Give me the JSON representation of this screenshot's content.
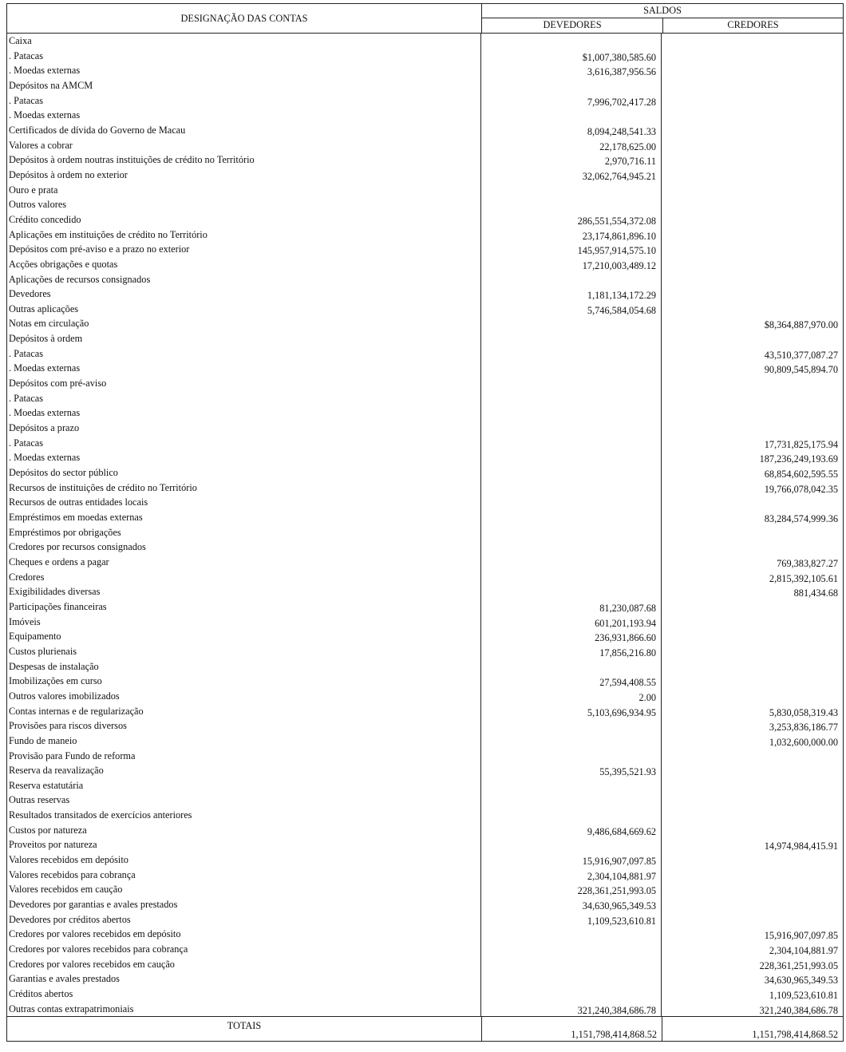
{
  "header": {
    "designacao": "DESIGNAÇÃO DAS CONTAS",
    "saldos": "SALDOS",
    "devedores": "DEVEDORES",
    "credores": "CREDORES"
  },
  "rows": [
    [
      "Caixa",
      "",
      ""
    ],
    [
      ". Patacas",
      "$1,007,380,585.60",
      ""
    ],
    [
      ". Moedas externas",
      "3,616,387,956.56",
      ""
    ],
    [
      "Depósitos na AMCM",
      "",
      ""
    ],
    [
      ". Patacas",
      "7,996,702,417.28",
      ""
    ],
    [
      ". Moedas externas",
      "",
      ""
    ],
    [
      "Certificados de dívida do Governo de Macau",
      "8,094,248,541.33",
      ""
    ],
    [
      "Valores a cobrar",
      "22,178,625.00",
      ""
    ],
    [
      "Depósitos à ordem noutras instituições de crédito no Território",
      "2,970,716.11",
      ""
    ],
    [
      "Depósitos à ordem no exterior",
      "32,062,764,945.21",
      ""
    ],
    [
      "Ouro e prata",
      "",
      ""
    ],
    [
      "Outros valores",
      "",
      ""
    ],
    [
      "Crédito concedido",
      "286,551,554,372.08",
      ""
    ],
    [
      "Aplicações em instituições de crédito no Território",
      "23,174,861,896.10",
      ""
    ],
    [
      "Depósitos com pré-aviso e a prazo no exterior",
      "145,957,914,575.10",
      ""
    ],
    [
      "Acções obrigações e quotas",
      "17,210,003,489.12",
      ""
    ],
    [
      "Aplicações de recursos consignados",
      "",
      ""
    ],
    [
      "Devedores",
      "1,181,134,172.29",
      ""
    ],
    [
      "Outras aplicações",
      "5,746,584,054.68",
      ""
    ],
    [
      "Notas em circulação",
      "",
      "$8,364,887,970.00"
    ],
    [
      "Depósitos à ordem",
      "",
      ""
    ],
    [
      ". Patacas",
      "",
      "43,510,377,087.27"
    ],
    [
      ". Moedas externas",
      "",
      "90,809,545,894.70"
    ],
    [
      "Depósitos com pré-aviso",
      "",
      ""
    ],
    [
      ". Patacas",
      "",
      ""
    ],
    [
      ". Moedas externas",
      "",
      ""
    ],
    [
      "Depósitos a prazo",
      "",
      ""
    ],
    [
      ". Patacas",
      "",
      "17,731,825,175.94"
    ],
    [
      ". Moedas externas",
      "",
      "187,236,249,193.69"
    ],
    [
      "Depósitos do sector público",
      "",
      "68,854,602,595.55"
    ],
    [
      "Recursos de instituições de crédito no Território",
      "",
      "19,766,078,042.35"
    ],
    [
      "Recursos de outras entidades locais",
      "",
      ""
    ],
    [
      "Empréstimos em moedas externas",
      "",
      "83,284,574,999.36"
    ],
    [
      "Empréstimos por obrigações",
      "",
      ""
    ],
    [
      "Credores por recursos consignados",
      "",
      ""
    ],
    [
      "Cheques e ordens a pagar",
      "",
      "769,383,827.27"
    ],
    [
      "Credores",
      "",
      "2,815,392,105.61"
    ],
    [
      "Exigibilidades diversas",
      "",
      "881,434.68"
    ],
    [
      "Participações financeiras",
      "81,230,087.68",
      ""
    ],
    [
      "Imóveis",
      "601,201,193.94",
      ""
    ],
    [
      "Equipamento",
      "236,931,866.60",
      ""
    ],
    [
      "Custos plurienais",
      "17,856,216.80",
      ""
    ],
    [
      "Despesas de instalação",
      "",
      ""
    ],
    [
      "Imobilizações em curso",
      "27,594,408.55",
      ""
    ],
    [
      "Outros valores imobilizados",
      "2.00",
      ""
    ],
    [
      "Contas internas e de regularização",
      "5,103,696,934.95",
      "5,830,058,319.43"
    ],
    [
      "Provisões para riscos diversos",
      "",
      "3,253,836,186.77"
    ],
    [
      "Fundo de maneio",
      "",
      "1,032,600,000.00"
    ],
    [
      "Provisão para Fundo de reforma",
      "",
      ""
    ],
    [
      "Reserva da reavalização",
      "55,395,521.93",
      ""
    ],
    [
      "Reserva estatutária",
      "",
      ""
    ],
    [
      "Outras reservas",
      "",
      ""
    ],
    [
      "Resultados transitados de exercícios anteriores",
      "",
      ""
    ],
    [
      "Custos por natureza",
      "9,486,684,669.62",
      ""
    ],
    [
      "Proveitos por natureza",
      "",
      "14,974,984,415.91"
    ],
    [
      "Valores recebidos em depósito",
      "15,916,907,097.85",
      ""
    ],
    [
      "Valores recebidos para cobrança",
      "2,304,104,881.97",
      ""
    ],
    [
      "Valores recebidos em caução",
      "228,361,251,993.05",
      ""
    ],
    [
      "Devedores por garantias e avales prestados",
      "34,630,965,349.53",
      ""
    ],
    [
      "Devedores por créditos abertos",
      "1,109,523,610.81",
      ""
    ],
    [
      "Credores por valores recebidos em depósito",
      "",
      "15,916,907,097.85"
    ],
    [
      "Credores por valores recebidos para cobrança",
      "",
      "2,304,104,881.97"
    ],
    [
      "Credores por valores recebidos em caução",
      "",
      "228,361,251,993.05"
    ],
    [
      "Garantias e avales prestados",
      "",
      "34,630,965,349.53"
    ],
    [
      "Créditos abertos",
      "",
      "1,109,523,610.81"
    ],
    [
      "Outras contas extrapatrimoniais",
      "321,240,384,686.78",
      "321,240,384,686.78"
    ]
  ],
  "totals": {
    "label": "TOTAIS",
    "devedores": "1,151,798,414,868.52",
    "credores": "1,151,798,414,868.52"
  }
}
